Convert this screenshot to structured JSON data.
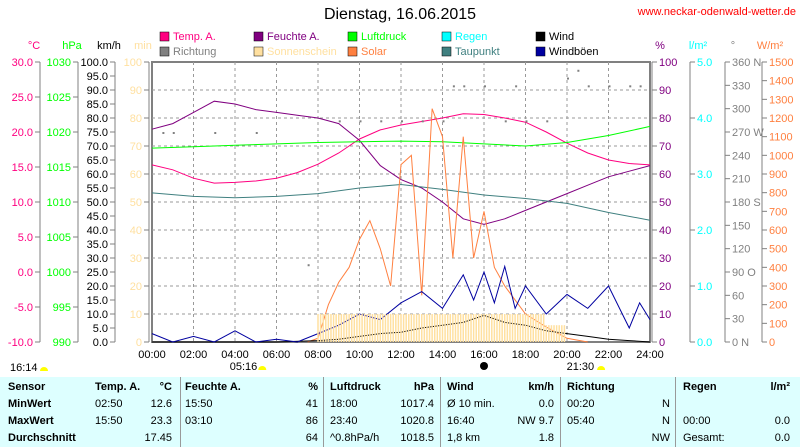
{
  "header": {
    "title": "Dienstag, 16.06.2015",
    "site": "www.neckar-odenwald-wetter.de"
  },
  "legend": [
    {
      "label": "Temp. A.",
      "color": "#ff0080"
    },
    {
      "label": "Richtung",
      "color": "#808080"
    },
    {
      "label": "Feuchte A.",
      "color": "#800080"
    },
    {
      "label": "Sonnenschein",
      "color": "#ffe0a0"
    },
    {
      "label": "Luftdruck",
      "color": "#00ff00"
    },
    {
      "label": "Solar",
      "color": "#ff8040"
    },
    {
      "label": "Regen",
      "color": "#00ffff"
    },
    {
      "label": "Taupunkt",
      "color": "#408080"
    },
    {
      "label": "Wind",
      "color": "#000000"
    },
    {
      "label": "Windböen",
      "color": "#0000a0"
    }
  ],
  "astro": {
    "moon_left": "16:14",
    "sunrise": "05:16",
    "sunset": "21:30",
    "sun_color": "#ffff00"
  },
  "chart_data": {
    "type": "line",
    "title": "Dienstag, 16.06.2015",
    "grid": true,
    "x_ticks": [
      "00:00",
      "02:00",
      "04:00",
      "06:00",
      "08:00",
      "10:00",
      "12:00",
      "14:00",
      "16:00",
      "18:00",
      "20:00",
      "22:00",
      "24:00"
    ],
    "axes": [
      {
        "unit": "°C",
        "side": "left",
        "range": [
          -10,
          30
        ],
        "ticks": [
          "30.0",
          "25.0",
          "20.0",
          "15.0",
          "10.0",
          "5.0",
          "0.0",
          "-5.0",
          "-10.0"
        ],
        "color": "#ff0080"
      },
      {
        "unit": "hPa",
        "side": "left",
        "range": [
          990,
          1030
        ],
        "ticks": [
          "1030",
          "1025",
          "1020",
          "1015",
          "1010",
          "1005",
          "1000",
          "995",
          "990"
        ],
        "color": "#00ff00"
      },
      {
        "unit": "km/h",
        "side": "left",
        "range": [
          0,
          100
        ],
        "ticks": [
          "100.0",
          "95.0",
          "90.0",
          "85.0",
          "80.0",
          "75.0",
          "70.0",
          "65.0",
          "60.0",
          "55.0",
          "50.0",
          "45.0",
          "40.0",
          "35.0",
          "30.0",
          "25.0",
          "20.0",
          "15.0",
          "10.0",
          "5.0",
          "0.0"
        ],
        "color": "#000000"
      },
      {
        "unit": "min",
        "side": "left",
        "range": [
          0,
          100
        ],
        "ticks": [
          "100",
          "90",
          "80",
          "70",
          "60",
          "50",
          "40",
          "30",
          "20",
          "10",
          "0"
        ],
        "color": "#ffe0a0"
      },
      {
        "unit": "%",
        "side": "right",
        "range": [
          0,
          100
        ],
        "ticks": [
          "100",
          "90",
          "80",
          "70",
          "60",
          "50",
          "40",
          "30",
          "20",
          "10",
          "0"
        ],
        "color": "#800080"
      },
      {
        "unit": "l/m²",
        "side": "right",
        "range": [
          0,
          5
        ],
        "ticks": [
          "5.0",
          "4.0",
          "3.0",
          "2.0",
          "1.0",
          "0.0"
        ],
        "color": "#00ffff"
      },
      {
        "unit": "°",
        "side": "right",
        "range": [
          0,
          360
        ],
        "ticks": [
          "360 N",
          "330",
          "300",
          "270 W",
          "240",
          "210",
          "180 S",
          "150",
          "120",
          "90  O",
          "60",
          "30",
          "0    N"
        ],
        "color": "#808080"
      },
      {
        "unit": "W/m²",
        "side": "right",
        "range": [
          0,
          1500
        ],
        "ticks": [
          "1500",
          "1400",
          "1300",
          "1200",
          "1100",
          "1000",
          "900",
          "800",
          "700",
          "600",
          "500",
          "400",
          "300",
          "200",
          "100",
          "0"
        ],
        "color": "#ff8040"
      }
    ],
    "series": [
      {
        "name": "Temp. A.",
        "axis": 0,
        "x": [
          0,
          1,
          2,
          3,
          4,
          5,
          6,
          7,
          8,
          9,
          10,
          11,
          12,
          13,
          14,
          15,
          16,
          17,
          18,
          19,
          20,
          21,
          22,
          23,
          24
        ],
        "y": [
          15.3,
          14.6,
          13.4,
          12.7,
          12.8,
          13,
          13.4,
          14.2,
          15.4,
          17,
          19,
          20.3,
          21,
          21.5,
          22,
          22.6,
          22.5,
          22,
          21.4,
          20,
          18.4,
          17,
          16,
          15.5,
          15.3
        ]
      },
      {
        "name": "Feuchte A.",
        "axis": 4,
        "x": [
          0,
          1,
          2,
          3,
          4,
          5,
          6,
          7,
          8,
          9,
          10,
          11,
          12,
          13,
          14,
          15,
          16,
          17,
          18,
          19,
          20,
          21,
          22,
          23,
          24
        ],
        "y": [
          76,
          78,
          82,
          86,
          85,
          83,
          82,
          81,
          80,
          78,
          72,
          63,
          58,
          55,
          50,
          44,
          42,
          44,
          47,
          50,
          53,
          56,
          59,
          61,
          63
        ]
      },
      {
        "name": "Luftdruck",
        "axis": 1,
        "x": [
          0,
          2,
          4,
          6,
          8,
          10,
          12,
          14,
          16,
          18,
          20,
          22,
          24
        ],
        "y": [
          1017.7,
          1017.9,
          1018.1,
          1018.3,
          1018.5,
          1018.6,
          1018.7,
          1018.6,
          1018.3,
          1018.0,
          1018.5,
          1019.5,
          1020.8
        ]
      },
      {
        "name": "Taupunkt",
        "axis": 0,
        "x": [
          0,
          2,
          4,
          6,
          8,
          10,
          12,
          14,
          16,
          18,
          20,
          22,
          24
        ],
        "y": [
          11.3,
          10.8,
          10.6,
          10.8,
          11.2,
          12.0,
          12.5,
          11.8,
          11.0,
          10.5,
          9.8,
          8.5,
          7.4
        ]
      },
      {
        "name": "Solar",
        "axis": 7,
        "x": [
          7.5,
          8,
          8.5,
          9,
          9.5,
          10,
          10.5,
          11,
          11.5,
          12,
          12.5,
          13,
          13.5,
          14,
          14.5,
          15,
          15.5,
          16,
          16.5,
          17,
          18,
          19,
          20,
          21
        ],
        "y": [
          0,
          20,
          200,
          320,
          400,
          550,
          650,
          500,
          300,
          950,
          1000,
          250,
          1250,
          1100,
          450,
          1100,
          450,
          700,
          400,
          300,
          150,
          80,
          20,
          0
        ]
      },
      {
        "name": "Wind",
        "axis": 2,
        "x": [
          0,
          2,
          4,
          6,
          8,
          9,
          10,
          11,
          12,
          13,
          14,
          15,
          16,
          17,
          18,
          19,
          20,
          21,
          22,
          23,
          24
        ],
        "y": [
          0,
          0,
          0,
          0,
          0.5,
          1,
          2,
          3,
          3.5,
          5,
          6,
          7,
          9.5,
          7,
          6,
          4,
          3,
          2,
          1,
          0.5,
          0
        ]
      },
      {
        "name": "Windböen",
        "axis": 2,
        "x": [
          0,
          1,
          2,
          3,
          4,
          5,
          6,
          7,
          8,
          9,
          10,
          11,
          12,
          13,
          14,
          15,
          15.5,
          16,
          16.5,
          17,
          17.5,
          18,
          19,
          20,
          21,
          22,
          23,
          23.5,
          24
        ],
        "y": [
          3,
          0,
          2,
          0,
          4,
          0,
          1,
          0,
          3,
          6,
          10,
          8,
          14,
          18,
          12,
          24,
          15,
          25,
          14,
          27,
          12,
          20,
          10,
          17,
          12,
          20,
          5,
          14,
          8
        ]
      },
      {
        "name": "Sonnenschein",
        "axis": 3,
        "type": "bar",
        "x": [
          8,
          9,
          10,
          11,
          12,
          13,
          14,
          15,
          16,
          17,
          18,
          19
        ],
        "y": [
          10,
          10,
          10,
          10,
          10,
          10,
          10,
          10,
          10,
          10,
          10,
          6
        ]
      },
      {
        "name": "Richtung",
        "axis": 6,
        "type": "scatter",
        "x": [
          0.5,
          1,
          3,
          5,
          7.5,
          9,
          10,
          11,
          12,
          13,
          14,
          14.5,
          15,
          16,
          17,
          17.5,
          18,
          19,
          20,
          20.5,
          21,
          22,
          23,
          23.5
        ],
        "y": [
          270,
          270,
          270,
          270,
          100,
          285,
          285,
          285,
          285,
          285,
          285,
          330,
          330,
          330,
          285,
          330,
          285,
          285,
          340,
          350,
          330,
          330,
          330,
          330
        ]
      }
    ]
  },
  "table": {
    "headers": [
      "Sensor",
      "Temp. A.",
      "°C",
      "Feuchte A.",
      "%",
      "Luftdruck",
      "hPa",
      "Wind",
      "km/h",
      "Richtung",
      "",
      "Regen",
      "l/m²"
    ],
    "rows": [
      [
        "MinWert",
        "02:50",
        "12.6",
        "15:50",
        "41",
        "18:00",
        "1017.4",
        "Ø 10 min.",
        "0.0",
        "00:20",
        "N",
        "",
        ""
      ],
      [
        "MaxWert",
        "15:50",
        "23.3",
        "03:10",
        "86",
        "23:40",
        "1020.8",
        "16:40",
        "NW 9.7",
        "05:40",
        "N",
        "00:00",
        "0.0"
      ],
      [
        "Durchschnitt",
        "",
        "17.45",
        "",
        "64",
        "^0.8hPa/h",
        "1018.5",
        "1,8 km",
        "1.8",
        "",
        "NW",
        "Gesamt:",
        "0.0"
      ]
    ]
  }
}
